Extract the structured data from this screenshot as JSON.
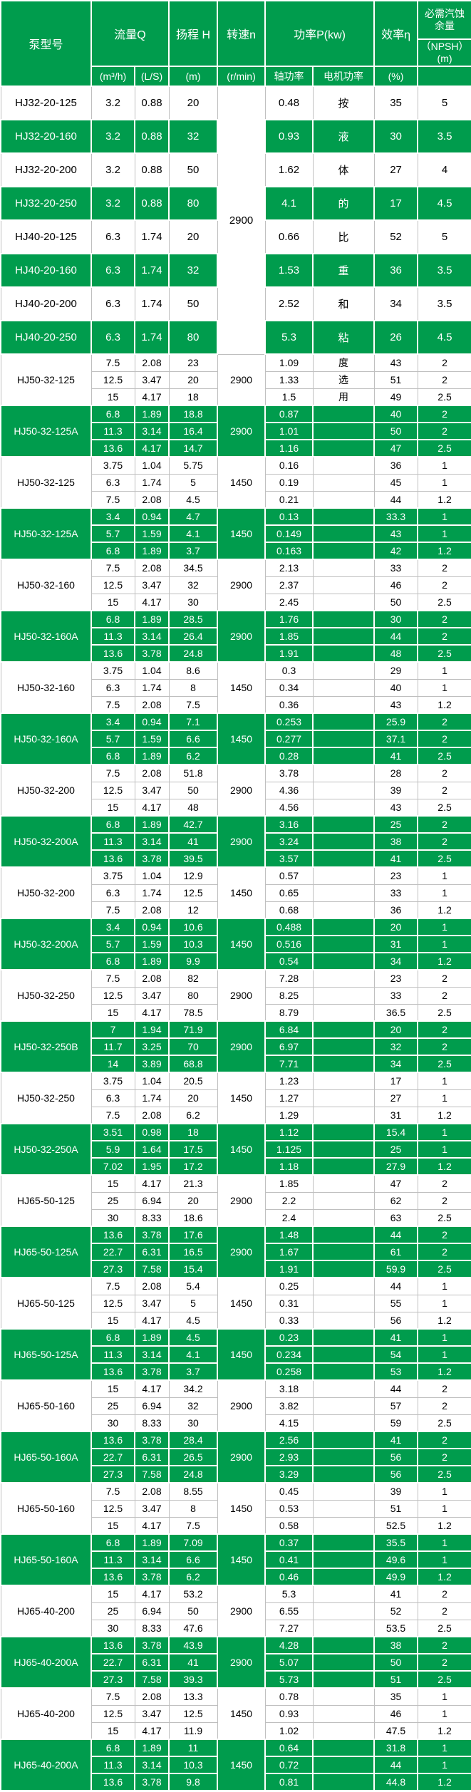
{
  "colors": {
    "green": "#009C4D",
    "grid_line": "#BFBFBF",
    "green_row_text": "#FFFFFF",
    "white_row_text": "#000000"
  },
  "header": {
    "model": "泵型号",
    "flow": "流量Q",
    "flow_unit_m3h": "(m³/h)",
    "flow_unit_ls": "(L/S)",
    "head": "扬程 H",
    "head_unit": "(m)",
    "speed": "转速n",
    "speed_unit": "(r/min)",
    "power": "功率P(kw)",
    "power_shaft": "轴功率",
    "power_motor": "电机功率",
    "efficiency": "效率η",
    "efficiency_unit": "(%)",
    "npsh_title": "必需汽蚀余量",
    "npsh_sub": "（NPSH）(m)"
  },
  "singles": {
    "speed": "2900",
    "rows": [
      {
        "model": "HJ32-20-125",
        "m3h": "3.2",
        "ls": "0.88",
        "head": "20",
        "shaft": "0.48",
        "motor": "按",
        "eff": "35",
        "npsh": "5",
        "green": false
      },
      {
        "model": "HJ32-20-160",
        "m3h": "3.2",
        "ls": "0.88",
        "head": "32",
        "shaft": "0.93",
        "motor": "液",
        "eff": "30",
        "npsh": "3.5",
        "green": true
      },
      {
        "model": "HJ32-20-200",
        "m3h": "3.2",
        "ls": "0.88",
        "head": "50",
        "shaft": "1.62",
        "motor": "体",
        "eff": "27",
        "npsh": "4",
        "green": false
      },
      {
        "model": "HJ32-20-250",
        "m3h": "3.2",
        "ls": "0.88",
        "head": "80",
        "shaft": "4.1",
        "motor": "的",
        "eff": "17",
        "npsh": "4.5",
        "green": true
      },
      {
        "model": "HJ40-20-125",
        "m3h": "6.3",
        "ls": "1.74",
        "head": "20",
        "shaft": "0.66",
        "motor": "比",
        "eff": "52",
        "npsh": "5",
        "green": false
      },
      {
        "model": "HJ40-20-160",
        "m3h": "6.3",
        "ls": "1.74",
        "head": "32",
        "shaft": "1.53",
        "motor": "重",
        "eff": "36",
        "npsh": "3.5",
        "green": true
      },
      {
        "model": "HJ40-20-200",
        "m3h": "6.3",
        "ls": "1.74",
        "head": "50",
        "shaft": "2.52",
        "motor": "和",
        "eff": "34",
        "npsh": "3.5",
        "green": false
      },
      {
        "model": "HJ40-20-250",
        "m3h": "6.3",
        "ls": "1.74",
        "head": "80",
        "shaft": "5.3",
        "motor": "粘",
        "eff": "26",
        "npsh": "4.5",
        "green": true
      }
    ]
  },
  "groups": [
    {
      "model": "HJ50-32-125",
      "speed": "2900",
      "green": false,
      "rows": [
        [
          "7.5",
          "2.08",
          "23",
          "1.09",
          "度",
          "43",
          "2"
        ],
        [
          "12.5",
          "3.47",
          "20",
          "1.33",
          "选",
          "51",
          "2"
        ],
        [
          "15",
          "4.17",
          "18",
          "1.5",
          "用",
          "49",
          "2.5"
        ]
      ]
    },
    {
      "model": "HJ50-32-125A",
      "speed": "2900",
      "green": true,
      "rows": [
        [
          "6.8",
          "1.89",
          "18.8",
          "0.87",
          "",
          "40",
          "2"
        ],
        [
          "11.3",
          "3.14",
          "16.4",
          "1.01",
          "",
          "50",
          "2"
        ],
        [
          "13.6",
          "4.17",
          "14.7",
          "1.16",
          "",
          "47",
          "2.5"
        ]
      ]
    },
    {
      "model": "HJ50-32-125",
      "speed": "1450",
      "green": false,
      "rows": [
        [
          "3.75",
          "1.04",
          "5.75",
          "0.16",
          "",
          "36",
          "1"
        ],
        [
          "6.3",
          "1.74",
          "5",
          "0.19",
          "",
          "45",
          "1"
        ],
        [
          "7.5",
          "2.08",
          "4.5",
          "0.21",
          "",
          "44",
          "1.2"
        ]
      ]
    },
    {
      "model": "HJ50-32-125A",
      "speed": "1450",
      "green": true,
      "rows": [
        [
          "3.4",
          "0.94",
          "4.7",
          "0.13",
          "",
          "33.3",
          "1"
        ],
        [
          "5.7",
          "1.59",
          "4.1",
          "0.149",
          "",
          "43",
          "1"
        ],
        [
          "6.8",
          "1.89",
          "3.7",
          "0.163",
          "",
          "42",
          "1.2"
        ]
      ]
    },
    {
      "model": "HJ50-32-160",
      "speed": "2900",
      "green": false,
      "rows": [
        [
          "7.5",
          "2.08",
          "34.5",
          "2.13",
          "",
          "33",
          "2"
        ],
        [
          "12.5",
          "3.47",
          "32",
          "2.37",
          "",
          "46",
          "2"
        ],
        [
          "15",
          "4.17",
          "30",
          "2.45",
          "",
          "50",
          "2.5"
        ]
      ]
    },
    {
      "model": "HJ50-32-160A",
      "speed": "2900",
      "green": true,
      "rows": [
        [
          "6.8",
          "1.89",
          "28.5",
          "1.76",
          "",
          "30",
          "2"
        ],
        [
          "11.3",
          "3.14",
          "26.4",
          "1.85",
          "",
          "44",
          "2"
        ],
        [
          "13.6",
          "3.78",
          "24.8",
          "1.91",
          "",
          "48",
          "2.5"
        ]
      ]
    },
    {
      "model": "HJ50-32-160",
      "speed": "1450",
      "green": false,
      "rows": [
        [
          "3.75",
          "1.04",
          "8.6",
          "0.3",
          "",
          "29",
          "1"
        ],
        [
          "6.3",
          "1.74",
          "8",
          "0.34",
          "",
          "40",
          "1"
        ],
        [
          "7.5",
          "2.08",
          "7.5",
          "0.36",
          "",
          "43",
          "1.2"
        ]
      ]
    },
    {
      "model": "HJ50-32-160A",
      "speed": "1450",
      "green": true,
      "rows": [
        [
          "3.4",
          "0.94",
          "7.1",
          "0.253",
          "",
          "25.9",
          "2"
        ],
        [
          "5.7",
          "1.59",
          "6.6",
          "0.277",
          "",
          "37.1",
          "2"
        ],
        [
          "6.8",
          "1.89",
          "6.2",
          "0.28",
          "",
          "41",
          "2.5"
        ]
      ]
    },
    {
      "model": "HJ50-32-200",
      "speed": "2900",
      "green": false,
      "rows": [
        [
          "7.5",
          "2.08",
          "51.8",
          "3.78",
          "",
          "28",
          "2"
        ],
        [
          "12.5",
          "3.47",
          "50",
          "4.36",
          "",
          "39",
          "2"
        ],
        [
          "15",
          "4.17",
          "48",
          "4.56",
          "",
          "43",
          "2.5"
        ]
      ]
    },
    {
      "model": "HJ50-32-200A",
      "speed": "2900",
      "green": true,
      "rows": [
        [
          "6.8",
          "1.89",
          "42.7",
          "3.16",
          "",
          "25",
          "2"
        ],
        [
          "11.3",
          "3.14",
          "41",
          "3.24",
          "",
          "38",
          "2"
        ],
        [
          "13.6",
          "3.78",
          "39.5",
          "3.57",
          "",
          "41",
          "2.5"
        ]
      ]
    },
    {
      "model": "HJ50-32-200",
      "speed": "1450",
      "green": false,
      "rows": [
        [
          "3.75",
          "1.04",
          "12.9",
          "0.57",
          "",
          "23",
          "1"
        ],
        [
          "6.3",
          "1.74",
          "12.5",
          "0.65",
          "",
          "33",
          "1"
        ],
        [
          "7.5",
          "2.08",
          "12",
          "0.68",
          "",
          "36",
          "1.2"
        ]
      ]
    },
    {
      "model": "HJ50-32-200A",
      "speed": "1450",
      "green": true,
      "rows": [
        [
          "3.4",
          "0.94",
          "10.6",
          "0.488",
          "",
          "20",
          "1"
        ],
        [
          "5.7",
          "1.59",
          "10.3",
          "0.516",
          "",
          "31",
          "1"
        ],
        [
          "6.8",
          "1.89",
          "9.9",
          "0.54",
          "",
          "34",
          "1.2"
        ]
      ]
    },
    {
      "model": "HJ50-32-250",
      "speed": "2900",
      "green": false,
      "rows": [
        [
          "7.5",
          "2.08",
          "82",
          "7.28",
          "",
          "23",
          "2"
        ],
        [
          "12.5",
          "3.47",
          "80",
          "8.25",
          "",
          "33",
          "2"
        ],
        [
          "15",
          "4.17",
          "78.5",
          "8.79",
          "",
          "36.5",
          "2.5"
        ]
      ]
    },
    {
      "model": "HJ50-32-250B",
      "speed": "2900",
      "green": true,
      "rows": [
        [
          "7",
          "1.94",
          "71.9",
          "6.84",
          "",
          "20",
          "2"
        ],
        [
          "11.7",
          "3.25",
          "70",
          "6.97",
          "",
          "32",
          "2"
        ],
        [
          "14",
          "3.89",
          "68.8",
          "7.71",
          "",
          "34",
          "2.5"
        ]
      ]
    },
    {
      "model": "HJ50-32-250",
      "speed": "1450",
      "green": false,
      "rows": [
        [
          "3.75",
          "1.04",
          "20.5",
          "1.23",
          "",
          "17",
          "1"
        ],
        [
          "6.3",
          "1.74",
          "20",
          "1.27",
          "",
          "27",
          "1"
        ],
        [
          "7.5",
          "2.08",
          "6.2",
          "1.29",
          "",
          "31",
          "1.2"
        ]
      ]
    },
    {
      "model": "HJ50-32-250A",
      "speed": "1450",
      "green": true,
      "rows": [
        [
          "3.51",
          "0.98",
          "18",
          "1.12",
          "",
          "15.4",
          "1"
        ],
        [
          "5.9",
          "1.64",
          "17.5",
          "1.125",
          "",
          "25",
          "1"
        ],
        [
          "7.02",
          "1.95",
          "17.2",
          "1.18",
          "",
          "27.9",
          "1.2"
        ]
      ]
    },
    {
      "model": "HJ65-50-125",
      "speed": "2900",
      "green": false,
      "rows": [
        [
          "15",
          "4.17",
          "21.3",
          "1.85",
          "",
          "47",
          "2"
        ],
        [
          "25",
          "6.94",
          "20",
          "2.2",
          "",
          "62",
          "2"
        ],
        [
          "30",
          "8.33",
          "18.6",
          "2.4",
          "",
          "63",
          "2.5"
        ]
      ]
    },
    {
      "model": "HJ65-50-125A",
      "speed": "2900",
      "green": true,
      "rows": [
        [
          "13.6",
          "3.78",
          "17.6",
          "1.48",
          "",
          "44",
          "2"
        ],
        [
          "22.7",
          "6.31",
          "16.5",
          "1.67",
          "",
          "61",
          "2"
        ],
        [
          "27.3",
          "7.58",
          "15.4",
          "1.91",
          "",
          "59.9",
          "2.5"
        ]
      ]
    },
    {
      "model": "HJ65-50-125",
      "speed": "1450",
      "green": false,
      "rows": [
        [
          "7.5",
          "2.08",
          "5.4",
          "0.25",
          "",
          "44",
          "1"
        ],
        [
          "12.5",
          "3.47",
          "5",
          "0.31",
          "",
          "55",
          "1"
        ],
        [
          "15",
          "4.17",
          "4.5",
          "0.33",
          "",
          "56",
          "1.2"
        ]
      ]
    },
    {
      "model": "HJ65-50-125A",
      "speed": "1450",
      "green": true,
      "rows": [
        [
          "6.8",
          "1.89",
          "4.5",
          "0.23",
          "",
          "41",
          "1"
        ],
        [
          "11.3",
          "3.14",
          "4.1",
          "0.234",
          "",
          "54",
          "1"
        ],
        [
          "13.6",
          "3.78",
          "3.7",
          "0.258",
          "",
          "53",
          "1.2"
        ]
      ]
    },
    {
      "model": "HJ65-50-160",
      "speed": "2900",
      "green": false,
      "rows": [
        [
          "15",
          "4.17",
          "34.2",
          "3.18",
          "",
          "44",
          "2"
        ],
        [
          "25",
          "6.94",
          "32",
          "3.82",
          "",
          "57",
          "2"
        ],
        [
          "30",
          "8.33",
          "30",
          "4.15",
          "",
          "59",
          "2.5"
        ]
      ]
    },
    {
      "model": "HJ65-50-160A",
      "speed": "2900",
      "green": true,
      "rows": [
        [
          "13.6",
          "3.78",
          "28.4",
          "2.56",
          "",
          "41",
          "2"
        ],
        [
          "22.7",
          "6.31",
          "26.5",
          "2.93",
          "",
          "56",
          "2"
        ],
        [
          "27.3",
          "7.58",
          "24.8",
          "3.29",
          "",
          "56",
          "2.5"
        ]
      ]
    },
    {
      "model": "HJ65-50-160",
      "speed": "1450",
      "green": false,
      "rows": [
        [
          "7.5",
          "2.08",
          "8.55",
          "0.45",
          "",
          "39",
          "1"
        ],
        [
          "12.5",
          "3.47",
          "8",
          "0.53",
          "",
          "51",
          "1"
        ],
        [
          "15",
          "4.17",
          "7.5",
          "0.58",
          "",
          "52.5",
          "1.2"
        ]
      ]
    },
    {
      "model": "HJ65-50-160A",
      "speed": "1450",
      "green": true,
      "rows": [
        [
          "6.8",
          "1.89",
          "7.09",
          "0.37",
          "",
          "35.5",
          "1"
        ],
        [
          "11.3",
          "3.14",
          "6.6",
          "0.41",
          "",
          "49.6",
          "1"
        ],
        [
          "13.6",
          "3.78",
          "6.2",
          "0.46",
          "",
          "49.9",
          "1.2"
        ]
      ]
    },
    {
      "model": "HJ65-40-200",
      "speed": "2900",
      "green": false,
      "rows": [
        [
          "15",
          "4.17",
          "53.2",
          "5.3",
          "",
          "41",
          "2"
        ],
        [
          "25",
          "6.94",
          "50",
          "6.55",
          "",
          "52",
          "2"
        ],
        [
          "30",
          "8.33",
          "47.6",
          "7.27",
          "",
          "53.5",
          "2.5"
        ]
      ]
    },
    {
      "model": "HJ65-40-200A",
      "speed": "2900",
      "green": true,
      "rows": [
        [
          "13.6",
          "3.78",
          "43.9",
          "4.28",
          "",
          "38",
          "2"
        ],
        [
          "22.7",
          "6.31",
          "41",
          "5.07",
          "",
          "50",
          "2"
        ],
        [
          "27.3",
          "7.58",
          "39.3",
          "5.73",
          "",
          "51",
          "2.5"
        ]
      ]
    },
    {
      "model": "HJ65-40-200",
      "speed": "1450",
      "green": false,
      "rows": [
        [
          "7.5",
          "2.08",
          "13.3",
          "0.78",
          "",
          "35",
          "1"
        ],
        [
          "12.5",
          "3.47",
          "12.5",
          "0.93",
          "",
          "46",
          "1"
        ],
        [
          "15",
          "4.17",
          "11.9",
          "1.02",
          "",
          "47.5",
          "1.2"
        ]
      ]
    },
    {
      "model": "HJ65-40-200A",
      "speed": "1450",
      "green": true,
      "rows": [
        [
          "6.8",
          "1.89",
          "11",
          "0.64",
          "",
          "31.8",
          "1"
        ],
        [
          "11.3",
          "3.14",
          "10.3",
          "0.72",
          "",
          "44",
          "1"
        ],
        [
          "13.6",
          "3.78",
          "9.8",
          "0.81",
          "",
          "44.8",
          "1.2"
        ]
      ]
    }
  ]
}
